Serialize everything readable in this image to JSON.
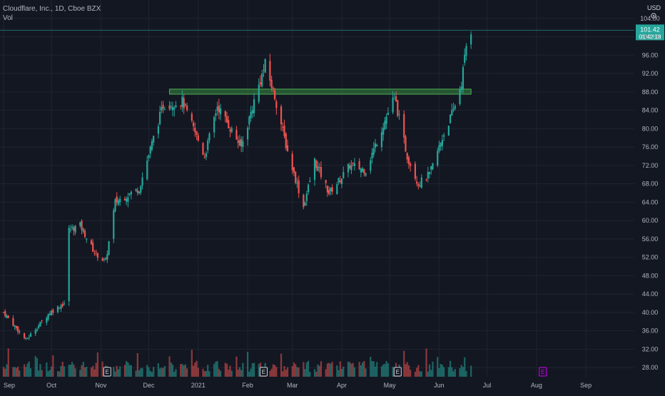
{
  "legend": {
    "symbol_line": "Cloudflare, Inc., 1D, Cboe BZX",
    "volume_label": "Vol"
  },
  "currency": "USD",
  "colors": {
    "background": "#131722",
    "up": "#26a69a",
    "down": "#ef5350",
    "grid": "#1f2430",
    "zone_fill": "#2e6b3a",
    "zone_stroke": "#4caf50",
    "price_badge": "#26a69a",
    "earnings_past": "#d1d4dc",
    "earnings_future": "#d500f9"
  },
  "price_badge": {
    "price": "101.42",
    "countdown": "01:42:18"
  },
  "chart_data": {
    "type": "candlestick",
    "title": "Cloudflare, Inc., 1D, Cboe BZX",
    "ylabel": "USD",
    "ylim": [
      26,
      108
    ],
    "y_ticks": [
      "104.00",
      "100.00",
      "96.00",
      "92.00",
      "88.00",
      "84.00",
      "80.00",
      "76.00",
      "72.00",
      "68.00",
      "64.00",
      "60.00",
      "56.00",
      "52.00",
      "48.00",
      "44.00",
      "40.00",
      "36.00",
      "32.00",
      "28.00"
    ],
    "x_ticks": [
      "Sep",
      "Oct",
      "Nov",
      "Dec",
      "2021",
      "Feb",
      "Mar",
      "Apr",
      "May",
      "Jun",
      "Jul",
      "Aug",
      "Sep"
    ],
    "x_range": [
      "2020-09-01",
      "2021-09-30"
    ],
    "resistance_zone": {
      "low": 87.5,
      "high": 88.6,
      "start": "2020-12-14",
      "end": "2021-06-21"
    },
    "last_price": 101.42,
    "earnings_markers": [
      {
        "date": "2020-11-05",
        "label": "E"
      },
      {
        "date": "2021-02-11",
        "label": "E"
      },
      {
        "date": "2021-05-06",
        "label": "E"
      },
      {
        "date": "2021-08-05",
        "label": "E"
      }
    ],
    "key_points": [
      {
        "date": "2020-09-01",
        "close": 40
      },
      {
        "date": "2020-09-15",
        "close": 34
      },
      {
        "date": "2020-09-30",
        "close": 40
      },
      {
        "date": "2020-10-09",
        "close": 42
      },
      {
        "date": "2020-10-12",
        "close": 58
      },
      {
        "date": "2020-10-19",
        "close": 59
      },
      {
        "date": "2020-10-28",
        "close": 53
      },
      {
        "date": "2020-11-04",
        "close": 51
      },
      {
        "date": "2020-11-10",
        "close": 64
      },
      {
        "date": "2020-11-25",
        "close": 67
      },
      {
        "date": "2020-12-04",
        "close": 78
      },
      {
        "date": "2020-12-10",
        "close": 85
      },
      {
        "date": "2020-12-22",
        "close": 86
      },
      {
        "date": "2021-01-05",
        "close": 74
      },
      {
        "date": "2021-01-13",
        "close": 85
      },
      {
        "date": "2021-01-28",
        "close": 76
      },
      {
        "date": "2021-02-05",
        "close": 86
      },
      {
        "date": "2021-02-12",
        "close": 94
      },
      {
        "date": "2021-02-18",
        "close": 87
      },
      {
        "date": "2021-02-26",
        "close": 75
      },
      {
        "date": "2021-03-08",
        "close": 63
      },
      {
        "date": "2021-03-15",
        "close": 73
      },
      {
        "date": "2021-03-24",
        "close": 66
      },
      {
        "date": "2021-03-31",
        "close": 69
      },
      {
        "date": "2021-04-06",
        "close": 72
      },
      {
        "date": "2021-04-16",
        "close": 71
      },
      {
        "date": "2021-04-26",
        "close": 80
      },
      {
        "date": "2021-05-04",
        "close": 87
      },
      {
        "date": "2021-05-12",
        "close": 74
      },
      {
        "date": "2021-05-19",
        "close": 68
      },
      {
        "date": "2021-05-26",
        "close": 70
      },
      {
        "date": "2021-06-03",
        "close": 78
      },
      {
        "date": "2021-06-10",
        "close": 84
      },
      {
        "date": "2021-06-15",
        "close": 90
      },
      {
        "date": "2021-06-18",
        "close": 98
      },
      {
        "date": "2021-06-21",
        "close": 101.42
      }
    ]
  }
}
